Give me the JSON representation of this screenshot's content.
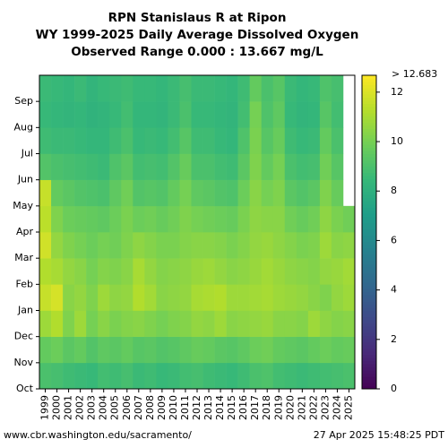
{
  "chart_data": {
    "type": "heatmap",
    "title": [
      "RPN Stanislaus R at Ripon",
      "WY 1999-2025 Daily Average Dissolved Oxygen",
      "Observed Range 0.000 : 13.667 mg/L"
    ],
    "x": [
      "1999",
      "2000",
      "2001",
      "2002",
      "2003",
      "2004",
      "2005",
      "2006",
      "2007",
      "2008",
      "2009",
      "2010",
      "2011",
      "2012",
      "2013",
      "2014",
      "2015",
      "2016",
      "2017",
      "2018",
      "2019",
      "2020",
      "2021",
      "2022",
      "2023",
      "2024",
      "2025"
    ],
    "y": [
      "Oct",
      "Nov",
      "Dec",
      "Jan",
      "Feb",
      "Mar",
      "Apr",
      "May",
      "Jun",
      "Jul",
      "Aug",
      "Sep"
    ],
    "values": [
      [
        9.0,
        9.6,
        10.8,
        11.6,
        11.2,
        11.8,
        11.4,
        11.6,
        9.2,
        8.7,
        8.5,
        8.6
      ],
      [
        8.9,
        9.8,
        11.2,
        11.9,
        11.0,
        10.6,
        10.2,
        9.6,
        9.0,
        8.6,
        8.4,
        8.5
      ],
      [
        8.7,
        9.4,
        10.2,
        10.4,
        10.6,
        10.2,
        9.8,
        9.4,
        8.9,
        8.6,
        8.3,
        8.4
      ],
      [
        8.6,
        9.6,
        10.8,
        10.6,
        10.4,
        10.0,
        9.7,
        9.2,
        8.8,
        8.5,
        8.4,
        8.6
      ],
      [
        8.5,
        9.2,
        10.0,
        10.2,
        10.0,
        9.8,
        9.6,
        9.1,
        8.7,
        8.4,
        8.2,
        8.3
      ],
      [
        8.8,
        9.5,
        10.4,
        10.8,
        10.3,
        10.0,
        9.5,
        9.0,
        8.6,
        8.4,
        8.3,
        8.5
      ],
      [
        8.7,
        9.4,
        10.1,
        10.5,
        10.2,
        9.9,
        9.8,
        9.5,
        9.1,
        8.7,
        8.5,
        8.6
      ],
      [
        8.9,
        9.6,
        10.3,
        10.6,
        10.4,
        10.2,
        10.1,
        9.9,
        9.4,
        9.0,
        8.8,
        8.7
      ],
      [
        8.6,
        9.3,
        10.4,
        11.2,
        11.0,
        10.5,
        9.8,
        9.2,
        8.8,
        8.5,
        8.4,
        8.5
      ],
      [
        8.7,
        9.4,
        10.2,
        10.9,
        10.6,
        10.3,
        9.9,
        9.3,
        8.9,
        8.6,
        8.4,
        8.5
      ],
      [
        8.5,
        9.2,
        10.0,
        10.4,
        10.3,
        10.1,
        9.7,
        9.2,
        8.8,
        8.5,
        8.3,
        8.4
      ],
      [
        8.6,
        9.3,
        10.2,
        10.5,
        10.4,
        10.1,
        9.9,
        9.6,
        9.2,
        8.8,
        8.6,
        8.6
      ],
      [
        8.8,
        9.5,
        10.3,
        10.6,
        10.5,
        10.3,
        10.2,
        10.0,
        9.7,
        9.3,
        9.0,
        8.9
      ],
      [
        8.9,
        9.7,
        10.6,
        11.0,
        10.7,
        10.4,
        10.0,
        9.5,
        9.0,
        8.7,
        8.5,
        8.6
      ],
      [
        8.7,
        9.6,
        10.5,
        11.1,
        10.8,
        10.4,
        9.9,
        9.4,
        9.0,
        8.7,
        8.5,
        8.6
      ],
      [
        8.6,
        9.4,
        10.8,
        11.2,
        10.6,
        10.3,
        9.8,
        9.2,
        8.8,
        8.5,
        8.4,
        8.5
      ],
      [
        8.5,
        9.3,
        10.4,
        10.8,
        10.4,
        10.1,
        9.7,
        9.1,
        8.7,
        8.4,
        8.3,
        8.4
      ],
      [
        8.7,
        9.5,
        10.5,
        10.8,
        10.5,
        10.3,
        10.1,
        9.8,
        9.4,
        9.1,
        8.8,
        8.7
      ],
      [
        9.0,
        9.8,
        10.6,
        10.9,
        10.7,
        10.6,
        10.5,
        10.4,
        10.2,
        10.1,
        10.0,
        9.6
      ],
      [
        9.1,
        9.9,
        10.7,
        11.0,
        10.9,
        10.7,
        10.4,
        10.0,
        9.6,
        9.3,
        9.1,
        9.0
      ],
      [
        8.8,
        9.6,
        10.4,
        10.8,
        10.7,
        10.5,
        10.4,
        10.2,
        10.0,
        9.7,
        9.5,
        9.3
      ],
      [
        8.7,
        9.5,
        10.4,
        10.7,
        10.5,
        10.3,
        9.9,
        9.4,
        9.0,
        8.7,
        8.5,
        8.6
      ],
      [
        8.6,
        9.4,
        10.3,
        10.6,
        10.4,
        10.1,
        9.7,
        9.2,
        8.8,
        8.5,
        8.3,
        8.4
      ],
      [
        8.7,
        9.6,
        10.8,
        10.4,
        10.3,
        10.2,
        9.9,
        9.4,
        8.9,
        8.6,
        8.4,
        8.5
      ],
      [
        8.8,
        9.8,
        10.5,
        10.2,
        10.6,
        10.8,
        10.5,
        10.2,
        9.9,
        9.6,
        9.3,
        9.1
      ],
      [
        8.9,
        9.6,
        10.3,
        10.6,
        10.7,
        10.4,
        10.1,
        9.7,
        9.3,
        9.0,
        8.8,
        8.9
      ],
      [
        9.0,
        9.7,
        10.4,
        10.8,
        10.9,
        10.5,
        9.9,
        null,
        null,
        null,
        null,
        null
      ]
    ],
    "colormap": "viridis",
    "zlim": [
      0,
      12.683
    ],
    "zticks": [
      0,
      2,
      4,
      6,
      8,
      10,
      12
    ],
    "colorbar_label": "> 12.683",
    "source": "www.cbr.washington.edu/sacramento/",
    "timestamp": "27 Apr 2025 15:48:25 PDT"
  }
}
